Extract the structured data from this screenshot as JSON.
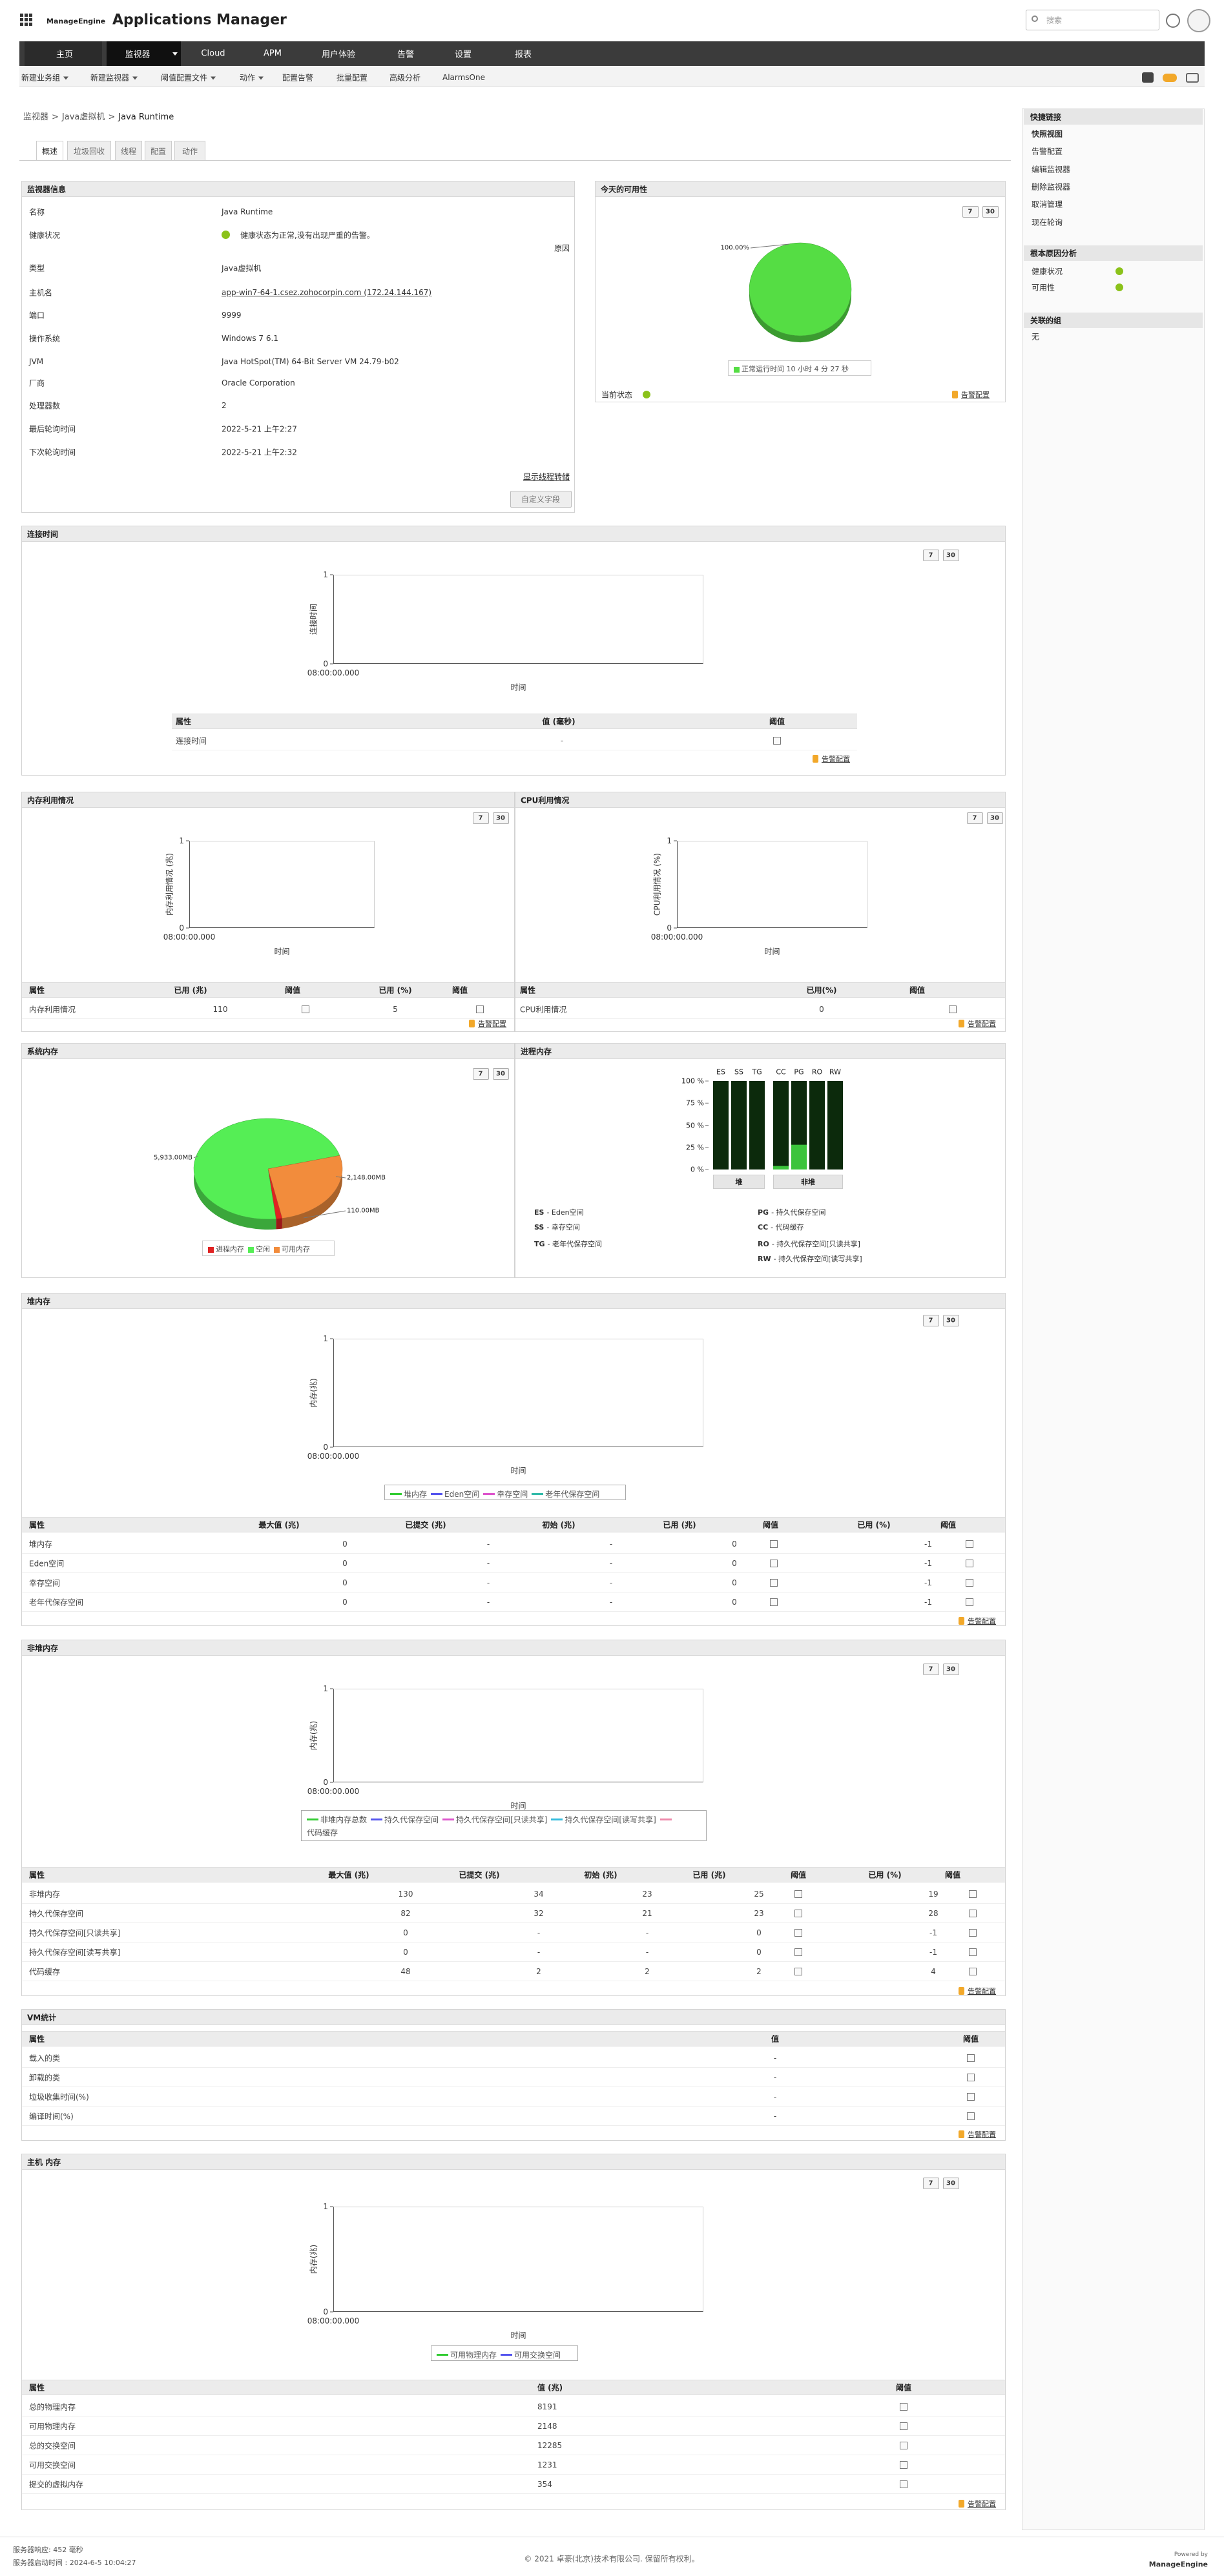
{
  "header": {
    "brand": "ManageEngine",
    "product": "Applications Manager",
    "search_placeholder": "搜索"
  },
  "nav": [
    "主页",
    "监视器",
    "Cloud",
    "APM",
    "用户体验",
    "告警",
    "设置",
    "报表"
  ],
  "subnav": [
    "新建业务组",
    "新建监视器",
    "阈值配置文件",
    "动作",
    "配置告警",
    "批量配置",
    "高级分析",
    "AlarmsOne"
  ],
  "breadcrumb": [
    "监视器",
    "Java虚拟机",
    "Java Runtime"
  ],
  "breadcrumb_separator": ">",
  "tabs": [
    "概述",
    "垃圾回收",
    "线程",
    "配置",
    "动作"
  ],
  "common": {
    "period_buttons": [
      "7",
      "30"
    ],
    "alarm_config": "告警配置"
  },
  "monitor_info": {
    "title": "监视器信息",
    "rows": [
      [
        "名称",
        "Java Runtime"
      ],
      [
        "健康状况",
        "健康状态为正常,没有出现严重的告警。"
      ],
      [
        "类型",
        "Java虚拟机"
      ],
      [
        "主机名",
        "app-win7-64-1.csez.zohocorpin.com (172.24.144.167)"
      ],
      [
        "端口",
        "9999"
      ],
      [
        "操作系统",
        "Windows 7 6.1"
      ],
      [
        "JVM",
        "Java HotSpot(TM) 64-Bit Server VM 24.79-b02"
      ],
      [
        "厂商",
        "Oracle Corporation"
      ],
      [
        "处理器数",
        "2"
      ],
      [
        "最后轮询时间",
        "2022-5-21 上午2:27"
      ],
      [
        "下次轮询时间",
        "2022-5-21 上午2:32"
      ]
    ],
    "reason": "原因",
    "thread_dump": "显示线程转储",
    "custom_fields": "自定义字段"
  },
  "availability": {
    "title": "今天的可用性",
    "current_status": "当前状态",
    "chart_data": {
      "type": "pie",
      "categories": [
        "正常运行时间 10 小时 4 分 27 秒"
      ],
      "values": [
        100
      ],
      "value_labels": [
        "100.00%"
      ],
      "colors": [
        "#55dd44"
      ]
    }
  },
  "connection_time": {
    "title": "连接时间",
    "chart_data": {
      "type": "line",
      "y_label": "连接时间",
      "x_label": "时间",
      "x": [
        "08:00:00.000"
      ],
      "ylim": [
        0,
        1
      ],
      "yticks": [
        0,
        1
      ],
      "series": []
    },
    "table": {
      "headers": [
        "属性",
        "值 (毫秒)",
        "阈值"
      ],
      "rows": [
        [
          "连接时间",
          "-"
        ]
      ]
    }
  },
  "memory": {
    "title": "内存利用情况",
    "chart_data": {
      "type": "line",
      "y_label": "内存利用情况 (兆)",
      "x_label": "时间",
      "x": [
        "08:00:00.000"
      ],
      "ylim": [
        0,
        1
      ],
      "yticks": [
        0,
        1
      ],
      "series": []
    },
    "table": {
      "headers": [
        "属性",
        "已用 (兆)",
        "阈值",
        "已用 (%)",
        "阈值"
      ],
      "rows": [
        [
          "内存利用情况",
          "110",
          "5"
        ]
      ]
    }
  },
  "cpu": {
    "title": "CPU利用情况",
    "chart_data": {
      "type": "line",
      "y_label": "CPU利用情况 (%)",
      "x_label": "时间",
      "x": [
        "08:00:00.000"
      ],
      "ylim": [
        0,
        1
      ],
      "yticks": [
        0,
        1
      ],
      "series": []
    },
    "table": {
      "headers": [
        "属性",
        "已用(%)",
        "阈值"
      ],
      "rows": [
        [
          "CPU利用情况",
          "0"
        ]
      ]
    }
  },
  "system_memory": {
    "title": "系统内存",
    "chart_data": {
      "type": "pie",
      "categories": [
        "进程内存",
        "空闲",
        "可用内存"
      ],
      "values": [
        110,
        5933,
        2148
      ],
      "value_labels": [
        "110.00MB",
        "5,933.00MB",
        "2,148.00MB"
      ],
      "colors": [
        "#e02222",
        "#55ee55",
        "#f28c3c"
      ]
    }
  },
  "process_memory": {
    "title": "进程内存",
    "chart_data": {
      "type": "bar",
      "ylim": [
        0,
        100
      ],
      "yticks": [
        {
          "value": 0,
          "label": "0 %"
        },
        {
          "value": 25,
          "label": "25 %"
        },
        {
          "value": 50,
          "label": "50 %"
        },
        {
          "value": 75,
          "label": "75 %"
        },
        {
          "value": 100,
          "label": "100 %"
        }
      ],
      "color": "#3cc43c",
      "groups": [
        {
          "name": "堆",
          "categories": [
            "ES",
            "SS",
            "TG"
          ],
          "values": [
            0,
            0,
            0
          ]
        },
        {
          "name": "非堆",
          "categories": [
            "CC",
            "PG",
            "RO",
            "RW"
          ],
          "values": [
            4,
            28,
            0,
            0
          ]
        }
      ],
      "legend": [
        {
          "code": "ES",
          "text": "- Eden空间"
        },
        {
          "code": "SS",
          "text": "- 幸存空间"
        },
        {
          "code": "TG",
          "text": "- 老年代保存空间"
        },
        {
          "code": "PG",
          "text": "- 持久代保存空间"
        },
        {
          "code": "CC",
          "text": "- 代码缓存"
        },
        {
          "code": "RO",
          "text": "- 持久代保存空间[只读共享]"
        },
        {
          "code": "RW",
          "text": "- 持久代保存空间[读写共享]"
        }
      ]
    }
  },
  "heap": {
    "title": "堆内存",
    "chart_data": {
      "type": "line",
      "y_label": "内存(兆)",
      "x_label": "时间",
      "x": [
        "08:00:00.000"
      ],
      "ylim": [
        0,
        1
      ],
      "yticks": [
        0,
        1
      ],
      "series": [
        {
          "name": "堆内存",
          "color": "#33cc33",
          "values": [
            null
          ]
        },
        {
          "name": "Eden空间",
          "color": "#5555ee",
          "values": [
            null
          ]
        },
        {
          "name": "幸存空间",
          "color": "#dd55cc",
          "values": [
            null
          ]
        },
        {
          "name": "老年代保存空间",
          "color": "#33bbaa",
          "values": [
            null
          ]
        }
      ]
    },
    "table": {
      "headers": [
        "属性",
        "最大值 (兆)",
        "已提交 (兆)",
        "初始 (兆)",
        "已用 (兆)",
        "阈值",
        "已用 (%)",
        "阈值"
      ],
      "rows": [
        [
          "堆内存",
          "0",
          "-",
          "-",
          "0",
          "-1"
        ],
        [
          "Eden空间",
          "0",
          "-",
          "-",
          "0",
          "-1"
        ],
        [
          "幸存空间",
          "0",
          "-",
          "-",
          "0",
          "-1"
        ],
        [
          "老年代保存空间",
          "0",
          "-",
          "-",
          "0",
          "-1"
        ]
      ]
    }
  },
  "non_heap": {
    "title": "非堆内存",
    "chart_data": {
      "type": "line",
      "y_label": "内存(兆)",
      "x_label": "时间",
      "x": [
        "08:00:00.000"
      ],
      "ylim": [
        0,
        1
      ],
      "yticks": [
        0,
        1
      ],
      "series": [
        {
          "name": "非堆内存总数",
          "color": "#33cc33",
          "values": [
            null
          ]
        },
        {
          "name": "持久代保存空间",
          "color": "#5555ee",
          "values": [
            null
          ]
        },
        {
          "name": "持久代保存空间[只读共享]",
          "color": "#dd55cc",
          "values": [
            null
          ]
        },
        {
          "name": "持久代保存空间[读写共享]",
          "color": "#33bbdd",
          "values": [
            null
          ]
        },
        {
          "name": "代码缓存",
          "color": "#ee88aa",
          "values": [
            null
          ]
        }
      ]
    },
    "table": {
      "headers": [
        "属性",
        "最大值 (兆)",
        "已提交 (兆)",
        "初始 (兆)",
        "已用 (兆)",
        "阈值",
        "已用 (%)",
        "阈值"
      ],
      "rows": [
        [
          "非堆内存",
          "130",
          "34",
          "23",
          "25",
          "19"
        ],
        [
          "持久代保存空间",
          "82",
          "32",
          "21",
          "23",
          "28"
        ],
        [
          "持久代保存空间[只读共享]",
          "0",
          "-",
          "-",
          "0",
          "-1"
        ],
        [
          "持久代保存空间[读写共享]",
          "0",
          "-",
          "-",
          "0",
          "-1"
        ],
        [
          "代码缓存",
          "48",
          "2",
          "2",
          "2",
          "4"
        ]
      ]
    }
  },
  "vm_stats": {
    "title": "VM统计",
    "table": {
      "headers": [
        "属性",
        "值",
        "阈值"
      ],
      "rows": [
        [
          "载入的类",
          "-"
        ],
        [
          "卸载的类",
          "-"
        ],
        [
          "垃圾收集时间(%)",
          "-"
        ],
        [
          "编译时间(%)",
          "-"
        ]
      ]
    }
  },
  "host_memory": {
    "title": "主机 内存",
    "chart_data": {
      "type": "line",
      "y_label": "内存(兆)",
      "x_label": "时间",
      "x": [
        "08:00:00.000"
      ],
      "ylim": [
        0,
        1
      ],
      "yticks": [
        0,
        1
      ],
      "series": [
        {
          "name": "可用物理内存",
          "color": "#33cc33",
          "values": [
            null
          ]
        },
        {
          "name": "可用交换空间",
          "color": "#5555ee",
          "values": [
            null
          ]
        }
      ]
    },
    "table": {
      "headers": [
        "属性",
        "值 (兆)",
        "阈值"
      ],
      "rows": [
        [
          "总的物理内存",
          "8191"
        ],
        [
          "可用物理内存",
          "2148"
        ],
        [
          "总的交换空间",
          "12285"
        ],
        [
          "可用交换空间",
          "1231"
        ],
        [
          "提交的虚拟内存",
          "354"
        ]
      ]
    }
  },
  "sidebar": {
    "quick_links": {
      "title": "快捷链接",
      "items": [
        "快照视图",
        "告警配置",
        "编辑监视器",
        "删除监视器",
        "取消管理",
        "现在轮询"
      ]
    },
    "rca": {
      "title": "根本原因分析",
      "items": [
        "健康状况",
        "可用性"
      ]
    },
    "groups": {
      "title": "关联的组",
      "items": [
        "无"
      ]
    }
  },
  "footer": {
    "response": "服务器响应: 452 毫秒",
    "startup": "服务器启动时间 : 2024-6-5 10:04:27",
    "copyright": "© 2021 卓豪(北京)技术有限公司. 保留所有权利。",
    "powered_by": "Powered by",
    "powered_brand": "ManageEngine"
  }
}
